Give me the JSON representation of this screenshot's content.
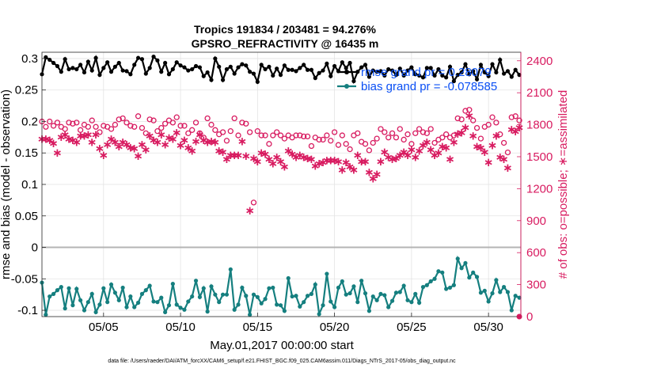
{
  "colors": {
    "rmse": "#000000",
    "bias": "#157f7f",
    "obs": "#d81b60",
    "legend_text": "#0a4ff5",
    "zero_line": "#b4b4b4",
    "grid": "#e3e3e3"
  },
  "chart_data": {
    "type": "line",
    "title_line1": "Tropics 191834 / 203481 = 94.276%",
    "title_line2": "GPSRO_REFRACTIVITY @ 16435 m",
    "xlabel": "May.01,2017 00:00:00 start",
    "ylabel_left": "rmse and bias (model - observation)",
    "ylabel_right": "# of obs: o=possible; ∗=assimilated",
    "footnote": "data file: /Users/raeder/DAI/ATM_forcXX/CAM6_setup/f.e21.FHIST_BGC.f09_025.CAM6assim.011/Diags_NTrS_2017-05/obs_diag_output.nc",
    "x_range": [
      1.0,
      32.1
    ],
    "x_ticks": [
      5,
      10,
      15,
      20,
      25,
      30
    ],
    "x_tick_labels": [
      "05/05",
      "05/10",
      "05/15",
      "05/20",
      "05/25",
      "05/30"
    ],
    "y_left_range": [
      -0.11,
      0.31
    ],
    "y_left_ticks": [
      -0.1,
      -0.05,
      0,
      0.05,
      0.1,
      0.15,
      0.2,
      0.25,
      0.3
    ],
    "y_left_tick_labels": [
      "-0.1",
      "-0.05",
      "0",
      "0.05",
      "0.1",
      "0.15",
      "0.2",
      "0.25",
      "0.3"
    ],
    "y_right_range": [
      0,
      2480
    ],
    "y_right_ticks": [
      0,
      300,
      600,
      900,
      1200,
      1500,
      1800,
      2100,
      2400
    ],
    "y_right_tick_labels": [
      "0",
      "300",
      "600",
      "900",
      "1200",
      "1500",
      "1800",
      "2100",
      "2400"
    ],
    "legend": [
      {
        "key": "rmse",
        "label": "rmse grand pr = 0.28079"
      },
      {
        "key": "bias",
        "label": "bias grand pr = -0.078585"
      }
    ],
    "x_start": 1.0,
    "x_step": 0.25,
    "series": [
      {
        "name": "rmse",
        "axis": "left",
        "values": [
          0.275,
          0.302,
          0.298,
          0.293,
          0.288,
          0.279,
          0.299,
          0.283,
          0.285,
          0.283,
          0.29,
          0.278,
          0.295,
          0.281,
          0.301,
          0.274,
          0.285,
          0.294,
          0.279,
          0.287,
          0.293,
          0.281,
          0.28,
          0.275,
          0.29,
          0.301,
          0.299,
          0.276,
          0.285,
          0.303,
          0.297,
          0.279,
          0.293,
          0.275,
          0.283,
          0.294,
          0.289,
          0.286,
          0.281,
          0.283,
          0.288,
          0.286,
          0.272,
          0.278,
          0.266,
          0.3,
          0.287,
          0.266,
          0.283,
          0.287,
          0.276,
          0.286,
          0.291,
          0.289,
          0.279,
          0.276,
          0.263,
          0.29,
          0.283,
          0.287,
          0.273,
          0.284,
          0.274,
          0.289,
          0.282,
          0.282,
          0.28,
          0.285,
          0.29,
          0.282,
          0.282,
          0.269,
          0.277,
          0.281,
          0.292,
          0.272,
          0.288,
          0.28,
          0.294,
          0.285,
          0.293,
          0.264,
          0.279,
          0.286,
          0.29,
          0.271,
          0.281,
          0.279,
          0.28,
          0.273,
          0.283,
          0.281,
          0.274,
          0.284,
          0.273,
          0.281,
          0.286,
          0.275,
          0.273,
          0.27,
          0.285,
          0.285,
          0.273,
          0.283,
          0.273,
          0.27,
          0.287,
          0.264,
          0.274,
          0.278,
          0.291,
          0.275,
          0.28,
          0.267,
          0.29,
          0.278,
          0.272,
          0.291,
          0.278,
          0.298,
          0.276,
          0.28,
          0.271,
          0.282,
          0.274
        ]
      },
      {
        "name": "bias",
        "axis": "left",
        "values": [
          -0.056,
          -0.107,
          -0.078,
          -0.074,
          -0.068,
          -0.063,
          -0.097,
          -0.065,
          -0.092,
          -0.066,
          -0.084,
          -0.1,
          -0.087,
          -0.074,
          -0.103,
          -0.091,
          -0.065,
          -0.087,
          -0.059,
          -0.072,
          -0.084,
          -0.064,
          -0.095,
          -0.078,
          -0.095,
          -0.088,
          -0.074,
          -0.068,
          -0.061,
          -0.086,
          -0.087,
          -0.08,
          -0.103,
          -0.092,
          -0.058,
          -0.091,
          -0.096,
          -0.099,
          -0.086,
          -0.078,
          -0.053,
          -0.079,
          -0.065,
          -0.102,
          -0.062,
          -0.075,
          -0.087,
          -0.075,
          -0.075,
          -0.035,
          -0.099,
          -0.091,
          -0.064,
          -0.077,
          -0.107,
          -0.075,
          -0.079,
          -0.089,
          -0.082,
          -0.065,
          -0.064,
          -0.091,
          -0.092,
          -0.101,
          -0.049,
          -0.078,
          -0.077,
          -0.094,
          -0.087,
          -0.077,
          -0.074,
          -0.059,
          -0.106,
          -0.092,
          -0.042,
          -0.086,
          -0.095,
          -0.064,
          -0.054,
          -0.075,
          -0.073,
          -0.062,
          -0.087,
          -0.053,
          -0.073,
          -0.101,
          -0.078,
          -0.084,
          -0.074,
          -0.076,
          -0.095,
          -0.085,
          -0.072,
          -0.071,
          -0.061,
          -0.084,
          -0.087,
          -0.074,
          -0.088,
          -0.063,
          -0.06,
          -0.054,
          -0.05,
          -0.038,
          -0.04,
          -0.066,
          -0.064,
          -0.06,
          -0.018,
          -0.033,
          -0.025,
          -0.048,
          -0.04,
          -0.047,
          -0.072,
          -0.069,
          -0.086,
          -0.073,
          -0.052,
          -0.071,
          -0.063,
          -0.071,
          -0.1,
          -0.077,
          -0.08
        ]
      },
      {
        "name": "possible",
        "axis": "right",
        "values": [
          1830,
          1780,
          1830,
          1790,
          1820,
          1780,
          1760,
          1820,
          1810,
          1820,
          1750,
          1800,
          1780,
          1840,
          1780,
          1730,
          1790,
          1780,
          1760,
          1800,
          1850,
          1860,
          1820,
          1790,
          1780,
          1880,
          1770,
          1720,
          1850,
          1840,
          1740,
          1770,
          1810,
          1840,
          1820,
          1870,
          1790,
          1790,
          1720,
          1750,
          1820,
          1720,
          1680,
          1860,
          1800,
          1750,
          1710,
          1730,
          1650,
          1740,
          1860,
          1700,
          1820,
          1810,
          1730,
          1070,
          1740,
          1700,
          1700,
          1620,
          1700,
          1730,
          1700,
          1670,
          1700,
          1680,
          1700,
          1700,
          1690,
          1690,
          1600,
          1680,
          1660,
          1660,
          1700,
          1650,
          1730,
          1610,
          1700,
          1620,
          1570,
          1700,
          1720,
          1640,
          1620,
          1560,
          1630,
          1670,
          1760,
          1730,
          1680,
          1720,
          1680,
          1760,
          1660,
          1710,
          1620,
          1720,
          1760,
          1730,
          1720,
          1760,
          1630,
          1660,
          1680,
          1710,
          1680,
          1700,
          1860,
          1850,
          1930,
          1940,
          1840,
          1770,
          1670,
          1780,
          1800,
          1870,
          1820,
          1710,
          1630,
          1540,
          1870,
          1880,
          1840
        ]
      },
      {
        "name": "assimilated",
        "axis": "right",
        "values": [
          1670,
          1670,
          1660,
          1630,
          1540,
          1690,
          1710,
          1670,
          1660,
          1640,
          1700,
          1700,
          1710,
          1640,
          1710,
          1580,
          1520,
          1620,
          1670,
          1640,
          1600,
          1640,
          1620,
          1590,
          1580,
          1510,
          1620,
          1570,
          1700,
          1660,
          1640,
          1710,
          1620,
          1680,
          1670,
          1730,
          1610,
          1660,
          1590,
          1560,
          1650,
          1710,
          1660,
          1640,
          1650,
          1640,
          1560,
          1550,
          1480,
          1520,
          1520,
          1520,
          1650,
          1510,
          1000,
          1490,
          1460,
          1540,
          1530,
          1480,
          1440,
          1500,
          1460,
          1410,
          1560,
          1530,
          1500,
          1520,
          1500,
          1490,
          1480,
          1420,
          1440,
          1450,
          1470,
          1470,
          1470,
          1460,
          1380,
          1450,
          1410,
          1380,
          1520,
          1460,
          1460,
          1360,
          1300,
          1340,
          1460,
          1550,
          1500,
          1480,
          1490,
          1520,
          1550,
          1520,
          1570,
          1500,
          1560,
          1610,
          1640,
          1570,
          1520,
          1540,
          1600,
          1590,
          1480,
          1640,
          1720,
          1730,
          1780,
          1890,
          1700,
          1600,
          1590,
          1550,
          1450,
          1610,
          1700,
          1500,
          1480,
          1400,
          1760,
          1740,
          1780
        ]
      }
    ],
    "extra_marks": [
      {
        "name": "bias-endpoint",
        "x": 32.0,
        "axis": "right",
        "y": 0,
        "color_key": "obs"
      }
    ]
  }
}
